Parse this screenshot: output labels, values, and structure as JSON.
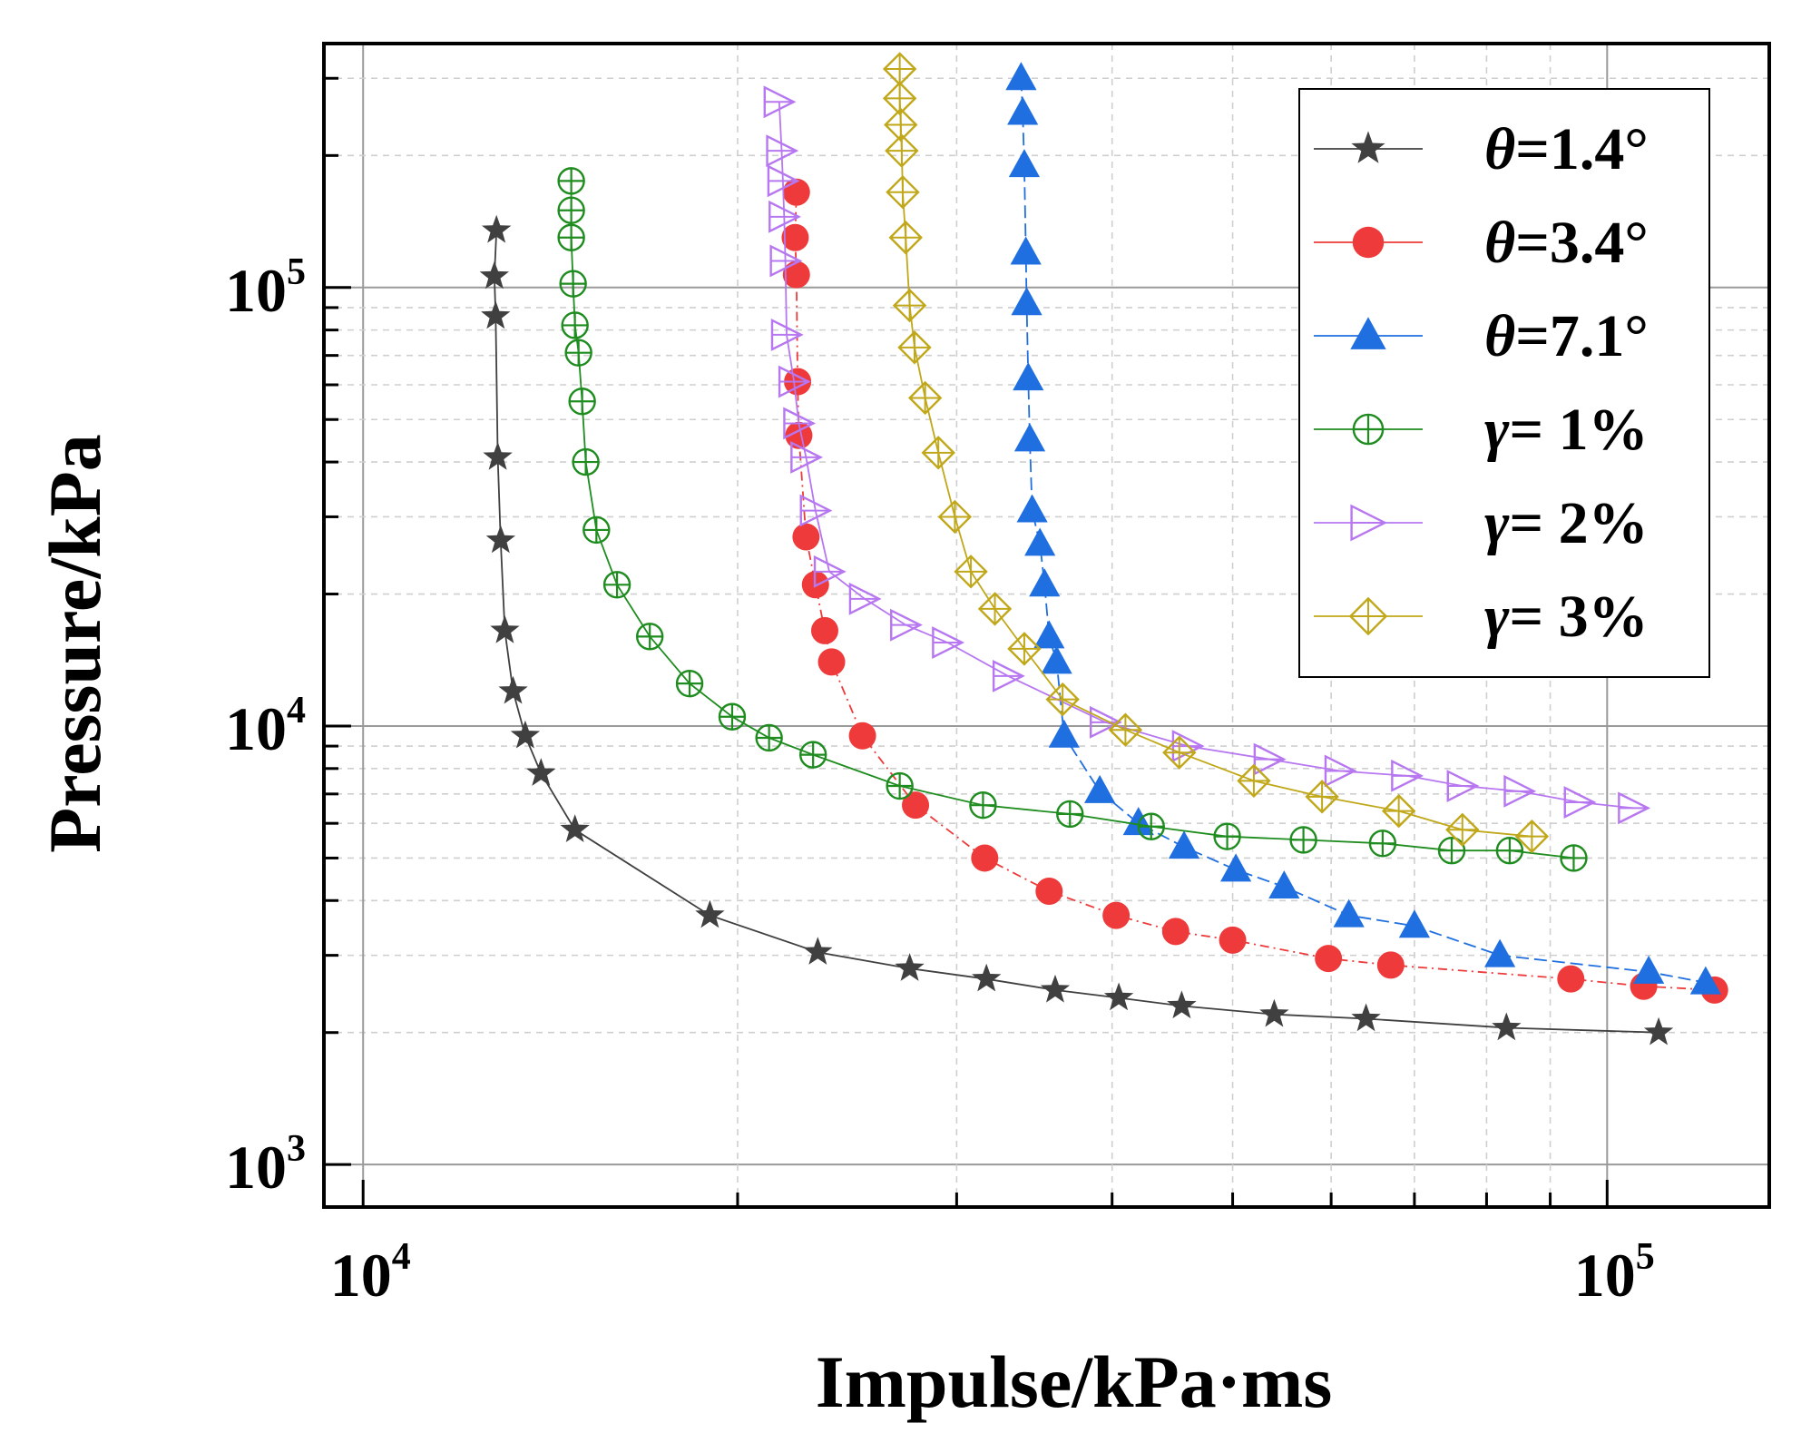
{
  "chart_data": {
    "type": "scatter",
    "title": "",
    "xlabel": "Impulse/kPa·ms",
    "ylabel": "Pressure/kPa",
    "xscale": "log",
    "yscale": "log",
    "xlim": [
      9300,
      135000
    ],
    "ylim": [
      800,
      360000
    ],
    "x_ticks": [
      {
        "base": "10",
        "exp": "4"
      },
      {
        "base": "10",
        "exp": "5"
      }
    ],
    "y_ticks": [
      {
        "base": "10",
        "exp": "3"
      },
      {
        "base": "10",
        "exp": "4"
      },
      {
        "base": "10",
        "exp": "5"
      }
    ],
    "grid": true,
    "legend": "top-right",
    "series": [
      {
        "name": "θ=1.4°",
        "symbol": "θ",
        "value": "=1.4°",
        "color": "#404040",
        "marker": "star",
        "x": [
          12800,
          12750,
          12780,
          12830,
          12900,
          13000,
          13200,
          13500,
          13900,
          14800,
          19000,
          23200,
          27500,
          31700,
          36000,
          40500,
          45500,
          54000,
          64000,
          83000,
          110000
        ],
        "y": [
          135000,
          106000,
          86000,
          41000,
          26500,
          16500,
          12000,
          9500,
          7800,
          5800,
          3700,
          3050,
          2800,
          2650,
          2500,
          2400,
          2300,
          2200,
          2150,
          2050,
          2000
        ]
      },
      {
        "name": "θ=3.4°",
        "symbol": "θ",
        "value": "=3.4°",
        "color": "#ee3a3a",
        "marker": "circle",
        "x": [
          22300,
          22250,
          22300,
          22350,
          22400,
          22700,
          23100,
          23500,
          23800,
          25200,
          27800,
          31600,
          35600,
          40300,
          45000,
          50000,
          59700,
          67000,
          93500,
          107000,
          122000
        ],
        "y": [
          165000,
          130000,
          107000,
          61000,
          46000,
          27000,
          21000,
          16500,
          14000,
          9500,
          6600,
          5000,
          4200,
          3700,
          3400,
          3250,
          2950,
          2850,
          2650,
          2550,
          2500
        ]
      },
      {
        "name": "θ=7.1°",
        "symbol": "θ",
        "value": "=7.1°",
        "color": "#1f6fe0",
        "marker": "triangle",
        "x": [
          33800,
          33900,
          34000,
          34100,
          34150,
          34250,
          34350,
          34500,
          35000,
          35300,
          35600,
          36100,
          36600,
          39100,
          42000,
          45700,
          50300,
          55000,
          62000,
          70000,
          82000,
          108000,
          120000
        ],
        "y": [
          300000,
          250000,
          190000,
          120000,
          92000,
          62000,
          45000,
          31000,
          26000,
          21000,
          16000,
          14000,
          9500,
          7100,
          6000,
          5300,
          4700,
          4300,
          3700,
          3500,
          3000,
          2750,
          2600
        ]
      },
      {
        "name": "γ= 1%",
        "symbol": "γ",
        "value": "= 1%",
        "color": "#1e8c1e",
        "marker": "circle-plus",
        "x": [
          14700,
          14700,
          14700,
          14750,
          14800,
          14900,
          15000,
          15100,
          15400,
          16000,
          17000,
          18300,
          19800,
          21200,
          23000,
          27000,
          31500,
          37000,
          43000,
          49500,
          57000,
          66000,
          75000,
          83500,
          94000
        ],
        "y": [
          175000,
          150000,
          130000,
          102000,
          82000,
          71000,
          55000,
          40000,
          28000,
          21000,
          16000,
          12500,
          10500,
          9400,
          8600,
          7300,
          6600,
          6300,
          5900,
          5600,
          5500,
          5400,
          5200,
          5200,
          5000
        ]
      },
      {
        "name": "γ= 2%",
        "symbol": "γ",
        "value": "= 2%",
        "color": "#b777f0",
        "marker": "triangle-right",
        "x": [
          21600,
          21700,
          21750,
          21800,
          21850,
          21900,
          22200,
          22400,
          22700,
          23100,
          23700,
          25300,
          27300,
          29500,
          33000,
          39500,
          46000,
          53500,
          61000,
          69000,
          76500,
          85000,
          95000,
          105000
        ],
        "y": [
          265000,
          205000,
          175000,
          145000,
          115000,
          78000,
          61000,
          49000,
          41000,
          31000,
          22500,
          19500,
          17000,
          15500,
          13000,
          10200,
          9000,
          8400,
          7900,
          7700,
          7300,
          7100,
          6700,
          6500
        ]
      },
      {
        "name": "γ= 3%",
        "symbol": "γ",
        "value": "= 3%",
        "color": "#c0a81a",
        "marker": "diamond-plus",
        "x": [
          27000,
          27000,
          27050,
          27100,
          27150,
          27300,
          27500,
          27750,
          28300,
          29000,
          29900,
          30800,
          32200,
          34000,
          36500,
          41000,
          45300,
          52000,
          59000,
          68000,
          76500,
          87000
        ],
        "y": [
          315000,
          270000,
          235000,
          205000,
          165000,
          130000,
          91000,
          73000,
          56000,
          42000,
          30000,
          22500,
          18500,
          15000,
          11500,
          9800,
          8700,
          7500,
          6900,
          6400,
          5800,
          5600
        ]
      }
    ]
  }
}
